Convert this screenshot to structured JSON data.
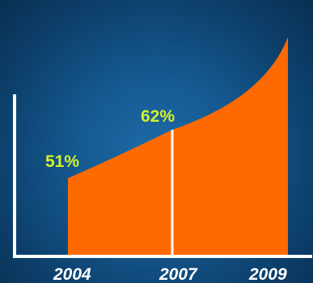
{
  "chart_data": {
    "type": "area",
    "categories": [
      "2004",
      "2007",
      "2009"
    ],
    "points": [
      {
        "x": "2004",
        "label": "51%"
      },
      {
        "x": "2007",
        "label": "62%"
      }
    ],
    "colors": {
      "fill": "#ff6a00",
      "axis": "#ffffff",
      "divider": "#ffffff",
      "label": "#d7f02a",
      "tick": "#ffffff"
    }
  }
}
